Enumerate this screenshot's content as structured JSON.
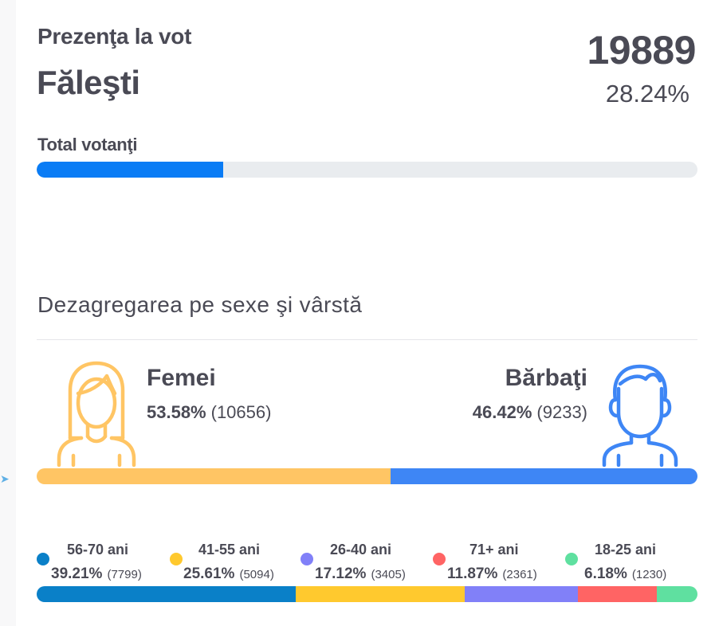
{
  "header": {
    "title_small": "Prezenţa la vot",
    "title_big": "Făleşti",
    "count": "19889",
    "percent_text": "28.24%"
  },
  "total": {
    "label": "Total votanţi",
    "fraction": 0.2824,
    "color": "#0a7cf5",
    "track_color": "#e9ecef"
  },
  "section": {
    "title": "Dezagregarea pe sexe şi vârstă"
  },
  "gender": {
    "female": {
      "label": "Femei",
      "percent": "53.58%",
      "count": "(10656)",
      "fraction": 0.5358,
      "color": "#ffc564",
      "icon": "woman-icon"
    },
    "male": {
      "label": "Bărbaţi",
      "percent": "46.42%",
      "count": "(9233)",
      "fraction": 0.4642,
      "color": "#3e86f5",
      "icon": "man-icon"
    }
  },
  "ages": [
    {
      "label": "56-70 ani",
      "percent": "39.21%",
      "count": "(7799)",
      "fraction": 0.3921,
      "color": "#0a80c8"
    },
    {
      "label": "41-55 ani",
      "percent": "25.61%",
      "count": "(5094)",
      "fraction": 0.2561,
      "color": "#ffc92e"
    },
    {
      "label": "26-40 ani",
      "percent": "17.12%",
      "count": "(3405)",
      "fraction": 0.1712,
      "color": "#8180f8"
    },
    {
      "label": "71+ ani",
      "percent": "11.87%",
      "count": "(2361)",
      "fraction": 0.1187,
      "color": "#ff6464"
    },
    {
      "label": "18-25 ani",
      "percent": "6.18%",
      "count": "(1230)",
      "fraction": 0.0618,
      "color": "#5fe0a0"
    }
  ]
}
